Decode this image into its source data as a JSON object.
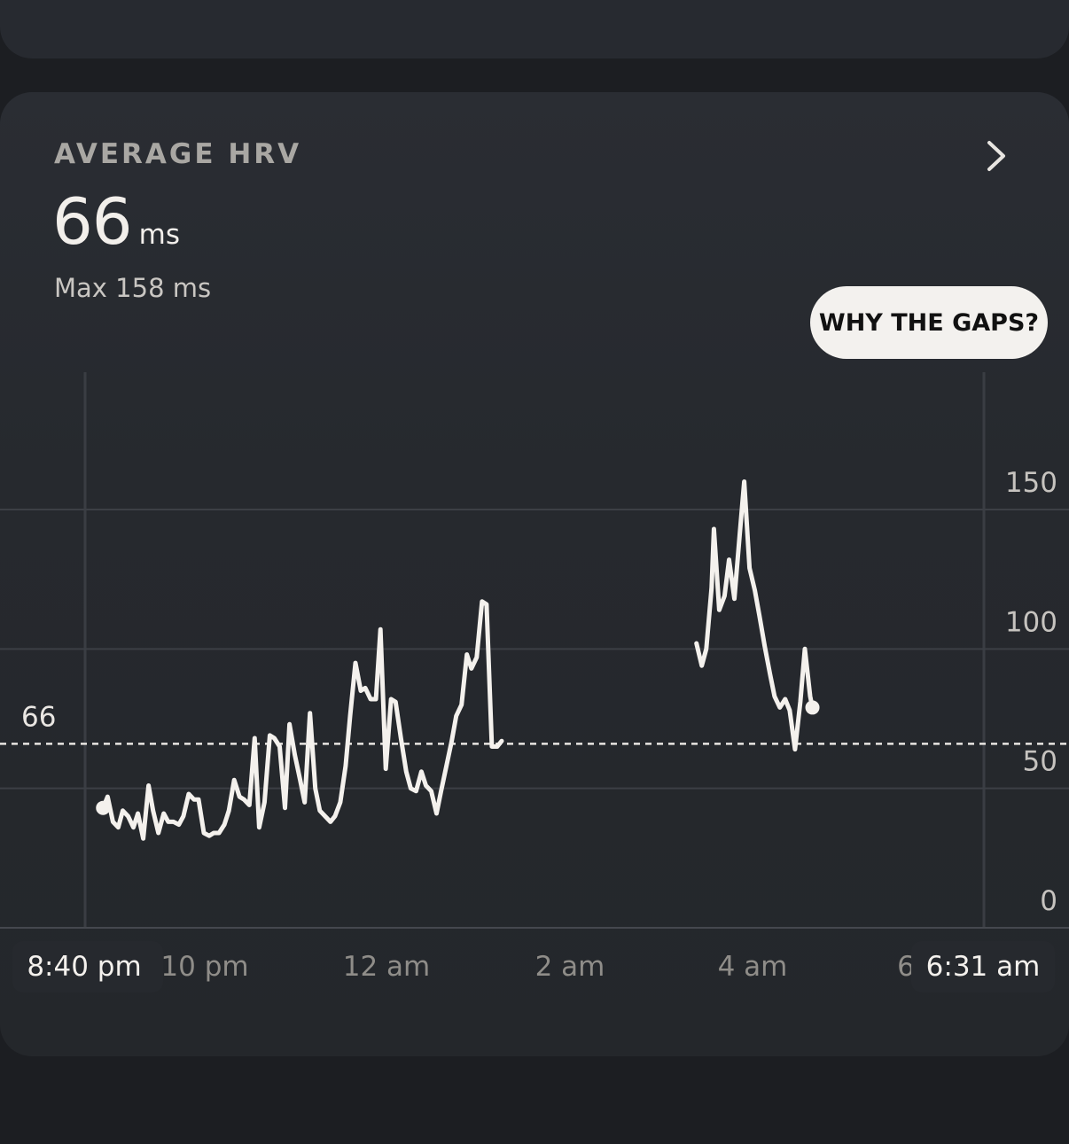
{
  "card": {
    "title": "AVERAGE HRV",
    "value": "66",
    "unit": "ms",
    "max_label": "Max 158 ms",
    "gaps_button": "WHY THE GAPS?",
    "chevron_icon": "chevron-right-icon"
  },
  "chart_data": {
    "type": "line",
    "xlabel": "",
    "ylabel": "",
    "ylim": [
      0,
      150
    ],
    "y_ticks": [
      "150",
      "100",
      "50",
      "0"
    ],
    "average_value": 66,
    "average_label": "66",
    "x_tick_labels": [
      "10 pm",
      "12 am",
      "2 am",
      "4 am",
      "6"
    ],
    "start_label": "8:40 pm",
    "end_label": "6:31 am",
    "series": [
      {
        "segments": [
          [
            [
              20.67,
              43
            ],
            [
              20.73,
              47
            ],
            [
              20.8,
              38
            ],
            [
              20.87,
              36
            ],
            [
              20.93,
              42
            ],
            [
              21.0,
              40
            ],
            [
              21.07,
              36
            ],
            [
              21.13,
              41
            ],
            [
              21.2,
              32
            ],
            [
              21.27,
              51
            ],
            [
              21.33,
              42
            ],
            [
              21.4,
              34
            ],
            [
              21.47,
              41
            ],
            [
              21.53,
              38
            ],
            [
              21.6,
              38
            ],
            [
              21.67,
              37
            ],
            [
              21.73,
              40
            ],
            [
              21.8,
              48
            ],
            [
              21.87,
              46
            ],
            [
              21.93,
              46
            ],
            [
              22.0,
              34
            ],
            [
              22.07,
              33
            ],
            [
              22.13,
              34
            ],
            [
              22.2,
              34
            ],
            [
              22.27,
              37
            ],
            [
              22.33,
              42
            ],
            [
              22.4,
              53
            ],
            [
              22.47,
              47
            ],
            [
              22.53,
              46
            ],
            [
              22.6,
              44
            ],
            [
              22.67,
              68
            ],
            [
              22.73,
              36
            ],
            [
              22.8,
              45
            ],
            [
              22.87,
              69
            ],
            [
              22.93,
              68
            ],
            [
              23.0,
              65
            ],
            [
              23.07,
              43
            ],
            [
              23.13,
              73
            ],
            [
              23.2,
              62
            ],
            [
              23.27,
              53
            ],
            [
              23.33,
              45
            ],
            [
              23.4,
              77
            ],
            [
              23.47,
              50
            ],
            [
              23.53,
              42
            ],
            [
              23.6,
              40
            ],
            [
              23.67,
              38
            ],
            [
              23.73,
              40
            ],
            [
              23.8,
              45
            ],
            [
              23.87,
              58
            ],
            [
              23.93,
              76
            ],
            [
              24.0,
              95
            ],
            [
              24.07,
              85
            ],
            [
              24.13,
              86
            ],
            [
              24.2,
              82
            ],
            [
              24.27,
              82
            ],
            [
              24.33,
              107
            ],
            [
              24.4,
              57
            ],
            [
              24.47,
              82
            ],
            [
              24.53,
              81
            ],
            [
              24.6,
              68
            ],
            [
              24.67,
              56
            ],
            [
              24.73,
              50
            ],
            [
              24.8,
              49
            ],
            [
              24.87,
              56
            ],
            [
              24.93,
              51
            ],
            [
              25.0,
              49
            ],
            [
              25.07,
              41
            ],
            [
              25.13,
              49
            ],
            [
              25.2,
              58
            ],
            [
              25.27,
              67
            ],
            [
              25.33,
              76
            ],
            [
              25.4,
              80
            ],
            [
              25.47,
              98
            ],
            [
              25.53,
              93
            ],
            [
              25.6,
              97
            ],
            [
              25.67,
              117
            ],
            [
              25.73,
              116
            ],
            [
              25.8,
              65
            ],
            [
              25.87,
              65
            ],
            [
              25.93,
              67
            ]
          ],
          [
            [
              28.5,
              102
            ],
            [
              28.57,
              94
            ],
            [
              28.63,
              100
            ],
            [
              28.7,
              122
            ],
            [
              28.73,
              143
            ],
            [
              28.8,
              114
            ],
            [
              28.87,
              119
            ],
            [
              28.93,
              132
            ],
            [
              29.0,
              118
            ],
            [
              29.07,
              141
            ],
            [
              29.13,
              160
            ],
            [
              29.2,
              129
            ],
            [
              29.27,
              121
            ],
            [
              29.33,
              112
            ],
            [
              29.4,
              101
            ],
            [
              29.47,
              91
            ],
            [
              29.53,
              83
            ],
            [
              29.6,
              79
            ],
            [
              29.67,
              82
            ],
            [
              29.73,
              78
            ],
            [
              29.8,
              64
            ],
            [
              29.87,
              81
            ],
            [
              29.93,
              100
            ],
            [
              30.0,
              83
            ],
            [
              30.03,
              79
            ]
          ]
        ]
      }
    ]
  }
}
